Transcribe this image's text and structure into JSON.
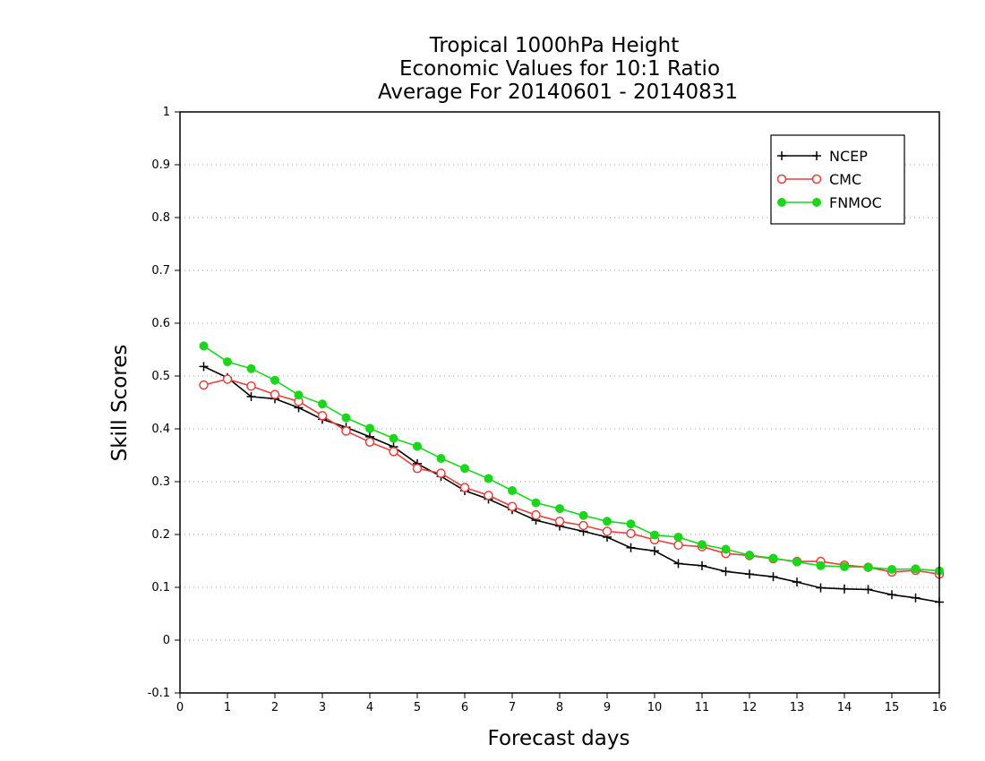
{
  "chart_data": {
    "type": "line",
    "title_lines": [
      "Tropical 1000hPa Height",
      "Economic Values for 10:1 Ratio",
      "Average For 20140601 - 20140831"
    ],
    "xlabel": "Forecast days",
    "ylabel": "Skill Scores",
    "xlim": [
      0,
      16
    ],
    "ylim": [
      -0.1,
      1
    ],
    "x_ticks": [
      0,
      1,
      2,
      3,
      4,
      5,
      6,
      7,
      8,
      9,
      10,
      11,
      12,
      13,
      14,
      15,
      16
    ],
    "x_tick_labels": [
      "0",
      "1",
      "2",
      "3",
      "4",
      "5",
      "6",
      "7",
      "8",
      "9",
      "10",
      "11",
      "12",
      "13",
      "14",
      "15",
      "16"
    ],
    "y_ticks": [
      -0.1,
      0,
      0.1,
      0.2,
      0.3,
      0.4,
      0.5,
      0.6,
      0.7,
      0.8,
      0.9,
      1
    ],
    "y_tick_labels": [
      "-0.1",
      "0",
      "0.1",
      "0.2",
      "0.3",
      "0.4",
      "0.5",
      "0.6",
      "0.7",
      "0.8",
      "0.9",
      "1"
    ],
    "grid": "horizontal dotted",
    "legend_position": "top-right",
    "x": [
      0.5,
      1,
      1.5,
      2,
      2.5,
      3,
      3.5,
      4,
      4.5,
      5,
      5.5,
      6,
      6.5,
      7,
      7.5,
      8,
      8.5,
      9,
      9.5,
      10,
      10.5,
      11,
      11.5,
      12,
      12.5,
      13,
      13.5,
      14,
      14.5,
      15,
      15.5,
      16
    ],
    "series": [
      {
        "name": "NCEP",
        "color": "#000000",
        "marker": "plus",
        "values": [
          0.518,
          0.497,
          0.461,
          0.457,
          0.44,
          0.418,
          0.403,
          0.385,
          0.366,
          0.334,
          0.31,
          0.283,
          0.267,
          0.247,
          0.227,
          0.216,
          0.206,
          0.195,
          0.175,
          0.169,
          0.145,
          0.141,
          0.13,
          0.125,
          0.12,
          0.11,
          0.099,
          0.097,
          0.096,
          0.086,
          0.08,
          0.072
        ]
      },
      {
        "name": "CMC",
        "color": "#e8403c",
        "marker": "open-circle",
        "values": [
          0.483,
          0.494,
          0.481,
          0.465,
          0.452,
          0.425,
          0.396,
          0.375,
          0.357,
          0.325,
          0.316,
          0.289,
          0.274,
          0.253,
          0.237,
          0.225,
          0.217,
          0.206,
          0.202,
          0.19,
          0.18,
          0.177,
          0.164,
          0.16,
          0.154,
          0.149,
          0.149,
          0.142,
          0.138,
          0.129,
          0.132,
          0.125
        ]
      },
      {
        "name": "FNMOC",
        "color": "#1cd61c",
        "marker": "filled-circle",
        "values": [
          0.557,
          0.527,
          0.514,
          0.492,
          0.464,
          0.447,
          0.421,
          0.401,
          0.382,
          0.367,
          0.344,
          0.325,
          0.306,
          0.283,
          0.26,
          0.249,
          0.236,
          0.225,
          0.22,
          0.199,
          0.195,
          0.181,
          0.172,
          0.161,
          0.155,
          0.148,
          0.141,
          0.139,
          0.138,
          0.134,
          0.135,
          0.131
        ]
      }
    ]
  }
}
